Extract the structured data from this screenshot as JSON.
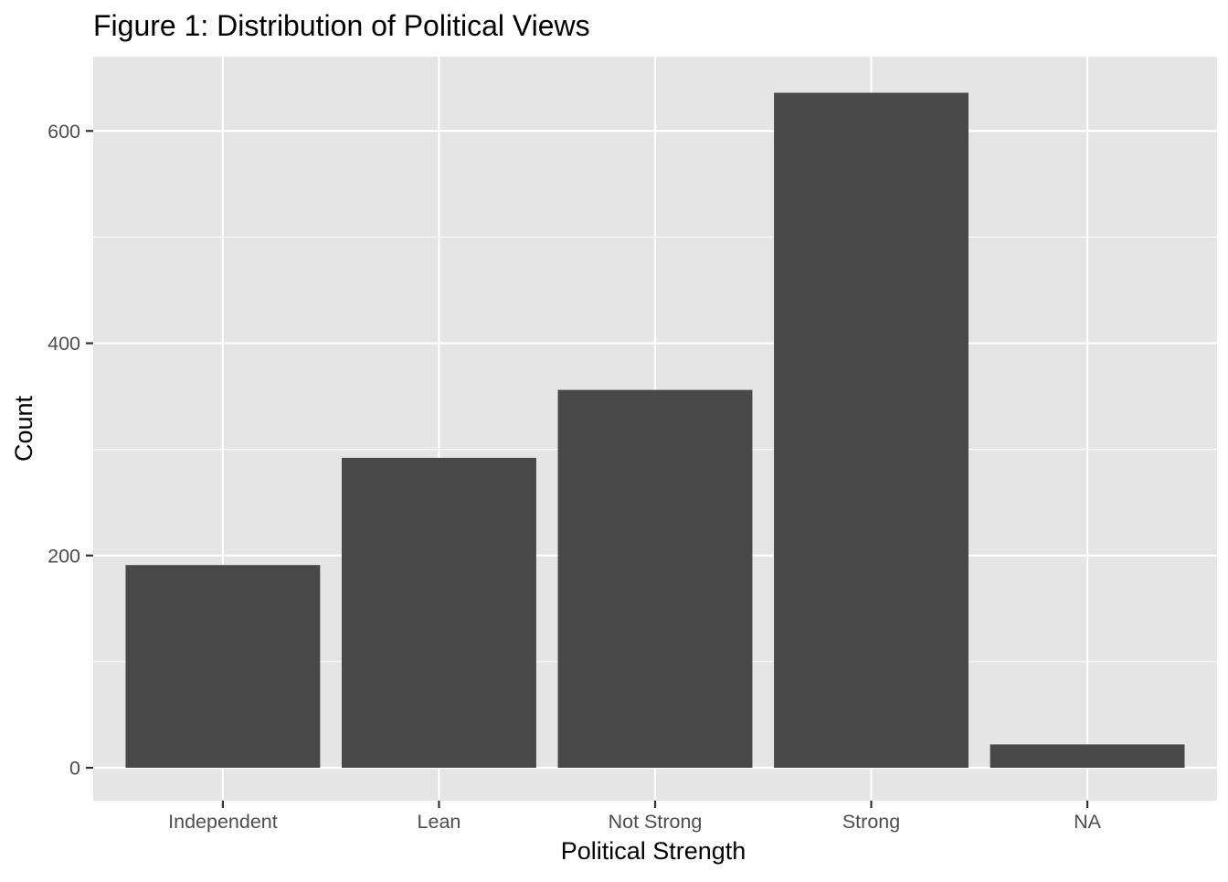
{
  "chart_data": {
    "type": "bar",
    "title": "Figure 1: Distribution of Political Views",
    "xlabel": "Political Strength",
    "ylabel": "Count",
    "categories": [
      "Independent",
      "Lean",
      "Not Strong",
      "Strong",
      "NA"
    ],
    "values": [
      191,
      292,
      356,
      636,
      22
    ],
    "ylim": [
      -31,
      670
    ],
    "yticks": [
      0,
      200,
      400,
      600
    ],
    "ytick_labels": [
      "0",
      "200",
      "400",
      "600"
    ],
    "grid": true,
    "legend": "none",
    "colors": {
      "bar": "#484848",
      "panel": "#e5e5e5",
      "grid": "#ffffff",
      "text": "#000000",
      "tick_text": "#4d4d4d",
      "tick_mark": "#333333"
    }
  }
}
